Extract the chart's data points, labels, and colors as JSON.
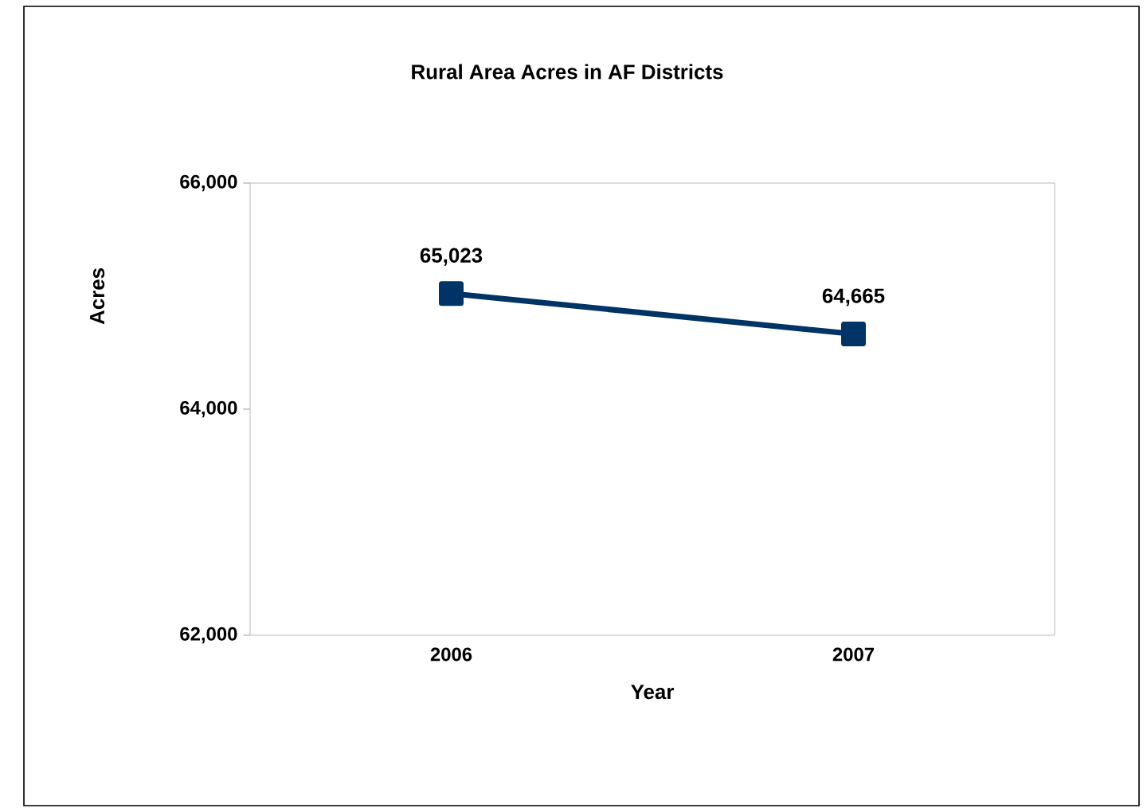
{
  "chart_data": {
    "type": "line",
    "title": "Rural Area Acres in AF Districts",
    "xlabel": "Year",
    "ylabel": "Acres",
    "categories": [
      "2006",
      "2007"
    ],
    "values": [
      65023,
      64665
    ],
    "value_labels": [
      "65,023",
      "64,665"
    ],
    "color": "#003366",
    "marker": "square",
    "line_style": "solid",
    "ylim": [
      62000,
      66000
    ],
    "yticks": [
      {
        "value": 62000,
        "label": "62,000"
      },
      {
        "value": 64000,
        "label": "64,000"
      },
      {
        "value": 66000,
        "label": "66,000"
      }
    ],
    "grid": false
  }
}
